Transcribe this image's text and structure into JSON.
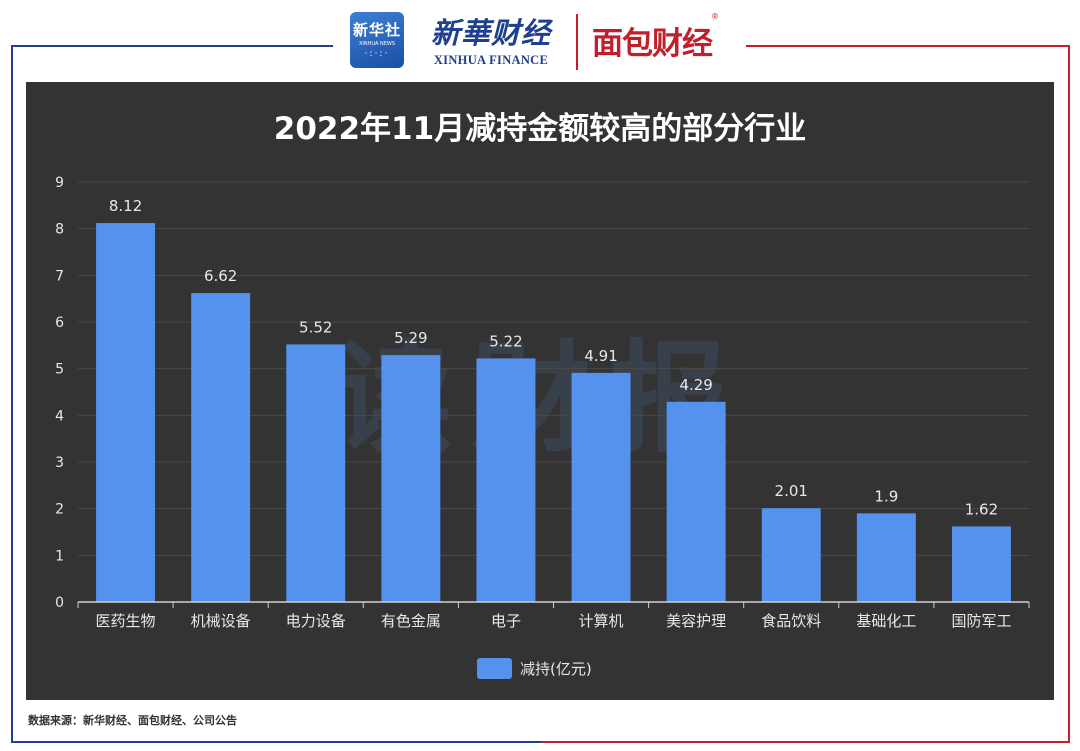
{
  "header": {
    "xinhua_badge_name": "新华社",
    "xinhua_badge_sub": "XINHUA NEWS",
    "finance_logo_cn": "新華财经",
    "finance_logo_en": "XINHUA FINANCE",
    "mianbao_logo": "面包财经",
    "mianbao_reg": "®"
  },
  "watermark": "读财报",
  "colors": {
    "bar": "#5592ee",
    "panel": "#333333",
    "text": "#e8e8e8",
    "frame_blue": "#1f3f8f",
    "frame_red": "#c21f2a"
  },
  "chart_data": {
    "type": "bar",
    "title": "2022年11月减持金额较高的部分行业",
    "categories": [
      "医药生物",
      "机械设备",
      "电力设备",
      "有色金属",
      "电子",
      "计算机",
      "美容护理",
      "食品饮料",
      "基础化工",
      "国防军工"
    ],
    "series": [
      {
        "name": "减持(亿元)",
        "values": [
          8.12,
          6.62,
          5.52,
          5.29,
          5.22,
          4.91,
          4.29,
          2.01,
          1.9,
          1.62
        ]
      }
    ],
    "data_labels": [
      "8.12",
      "6.62",
      "5.52",
      "5.29",
      "5.22",
      "4.91",
      "4.29",
      "2.01",
      "1.9",
      "1.62"
    ],
    "ylim": [
      0,
      9
    ],
    "yticks": [
      "0",
      "1",
      "2",
      "3",
      "4",
      "5",
      "6",
      "7",
      "8",
      "9"
    ],
    "xlabel": "",
    "ylabel": "",
    "grid": true,
    "legend_position": "bottom-center"
  },
  "source_note": "数据来源：新华财经、面包财经、公司公告"
}
